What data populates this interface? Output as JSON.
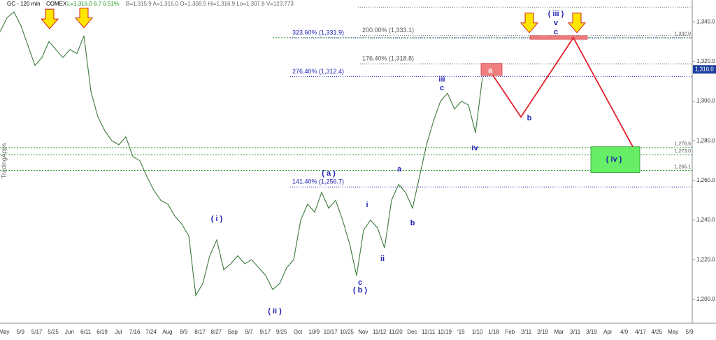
{
  "chart_data": {
    "type": "line",
    "header": {
      "symbol": "GC - 120 min",
      "exchange": "COMEX",
      "change": "L=1,316.0  6.7  0.51%",
      "quote": "B=1,315.9  A=1,316.0  O=1,308.5  Hi=1,316.9  Lo=1,307.8  V=123,773"
    },
    "watermark": "TradingApps",
    "xlim": [
      0,
      99
    ],
    "ylim": [
      1188,
      1351
    ],
    "yticks": [
      {
        "value": 1200,
        "label": "1,200.0"
      },
      {
        "value": 1220,
        "label": "1,220.0"
      },
      {
        "value": 1240,
        "label": "1,240.0"
      },
      {
        "value": 1260,
        "label": "1,260.0"
      },
      {
        "value": 1280,
        "label": "1,280.0"
      },
      {
        "value": 1300,
        "label": "1,300.0"
      },
      {
        "value": 1320,
        "label": "1,320.0"
      },
      {
        "value": 1340,
        "label": "1,340.0"
      }
    ],
    "x_labels": [
      "May",
      "5/9",
      "5/17",
      "5/25",
      "Jun",
      "6/11",
      "6/19",
      "Jul",
      "7/16",
      "7/24",
      "Aug",
      "8/9",
      "8/17",
      "8/27",
      "Sep",
      "9/7",
      "9/17",
      "9/25",
      "Oct",
      "10/9",
      "10/17",
      "10/25",
      "Nov",
      "11/12",
      "11/20",
      "Dec",
      "12/11",
      "12/19",
      "'19",
      "1/10",
      "1/18",
      "Feb",
      "2/11",
      "2/19",
      "Mar",
      "3/11",
      "3/19",
      "Apr",
      "4/9",
      "4/17",
      "4/25",
      "May",
      "5/9"
    ],
    "last_price": {
      "value": 1316,
      "label": "1,316.0"
    },
    "series": [
      {
        "name": "GC",
        "color": "#3b7a3b",
        "values": [
          1335,
          1342,
          1345,
          1338,
          1328,
          1318,
          1322,
          1330,
          1326,
          1322,
          1326,
          1324,
          1333,
          1305,
          1292,
          1285,
          1280,
          1278,
          1282,
          1272,
          1270,
          1262,
          1255,
          1250,
          1248,
          1242,
          1238,
          1232,
          1202,
          1208,
          1222,
          1230,
          1215,
          1218,
          1222,
          1218,
          1220,
          1216,
          1212,
          1205,
          1208,
          1216,
          1220,
          1240,
          1248,
          1244,
          1254,
          1246,
          1250,
          1240,
          1228,
          1212,
          1235,
          1240,
          1236,
          1226,
          1250,
          1258,
          1254,
          1246,
          1262,
          1278,
          1290,
          1300,
          1304,
          1296,
          1300,
          1298,
          1284,
          1312
        ]
      },
      {
        "name": "projection",
        "color": "#e0202a",
        "x": [
          70.5,
          74.5,
          82,
          90.5
        ],
        "values": [
          1313,
          1292,
          1332,
          1277
        ]
      }
    ],
    "fib_levels": [
      {
        "label": "323.60% (1,331.9)",
        "value": 1331.9,
        "from": 41.5,
        "color": "#1f1fb4"
      },
      {
        "label": "200.00% (1,333.1)",
        "value": 1333.1,
        "from": 51.5,
        "color": "#555555"
      },
      {
        "label": "176.40% (1,318.8)",
        "value": 1318.8,
        "from": 51.5,
        "color": "#555555"
      },
      {
        "label": "276.40% (1,312.4)",
        "value": 1312.4,
        "from": 41.5,
        "color": "#1f1fb4"
      },
      {
        "label": "141.40% (1,256.7)",
        "value": 1256.7,
        "from": 41.5,
        "color": "#1f1fb4"
      }
    ],
    "levels": [
      {
        "value": 1332,
        "label": "1,332.0"
      },
      {
        "value": 1276.6,
        "label": "1,276.6"
      },
      {
        "value": 1273,
        "label": "1,273.0"
      },
      {
        "value": 1265.1,
        "label": "1,265.1"
      }
    ],
    "top_line": {
      "value": 1347.4,
      "from": 51.2
    },
    "boxes": [
      {
        "x": [
          68.8,
          71.8
        ],
        "y": [
          1313,
          1319
        ],
        "color": "#f08080"
      },
      {
        "x": [
          75.8,
          84
        ],
        "y": [
          1331.2,
          1333
        ],
        "color": "#f08080"
      },
      {
        "x": [
          84.5,
          91.5
        ],
        "y": [
          1264,
          1277
        ],
        "color": "#66ee66"
      }
    ],
    "arrows": [
      {
        "x": 7.1,
        "y": 1336.5
      },
      {
        "x": 12,
        "y": 1337
      },
      {
        "x": 75.7,
        "y": 1334.5
      },
      {
        "x": 82.5,
        "y": 1334.5
      }
    ],
    "wave_labels": [
      {
        "text": "( i )",
        "x": 31,
        "y": 1240.6
      },
      {
        "text": "( ii )",
        "x": 39.3,
        "y": 1194
      },
      {
        "text": "( a )",
        "x": 47,
        "y": 1263.5
      },
      {
        "text": "c",
        "x": 51.5,
        "y": 1208.5
      },
      {
        "text": "( b )",
        "x": 51.5,
        "y": 1204.6
      },
      {
        "text": "i",
        "x": 52.5,
        "y": 1247.6
      },
      {
        "text": "ii",
        "x": 54.7,
        "y": 1220.5
      },
      {
        "text": "a",
        "x": 57.1,
        "y": 1265.6
      },
      {
        "text": "b",
        "x": 59,
        "y": 1238.5
      },
      {
        "text": "iii",
        "x": 63.2,
        "y": 1311
      },
      {
        "text": "c",
        "x": 63.2,
        "y": 1306.5
      },
      {
        "text": "iv",
        "x": 67.9,
        "y": 1276.2
      },
      {
        "text": "a",
        "x": 70.1,
        "y": 1315.3
      },
      {
        "text": "b",
        "x": 75.7,
        "y": 1291.3
      },
      {
        "text": "( iii )",
        "x": 79.5,
        "y": 1343.9
      },
      {
        "text": "v",
        "x": 79.5,
        "y": 1339.3
      },
      {
        "text": "c",
        "x": 79.5,
        "y": 1334.7
      },
      {
        "text": "( iv )",
        "x": 87.8,
        "y": 1270.5
      }
    ]
  }
}
